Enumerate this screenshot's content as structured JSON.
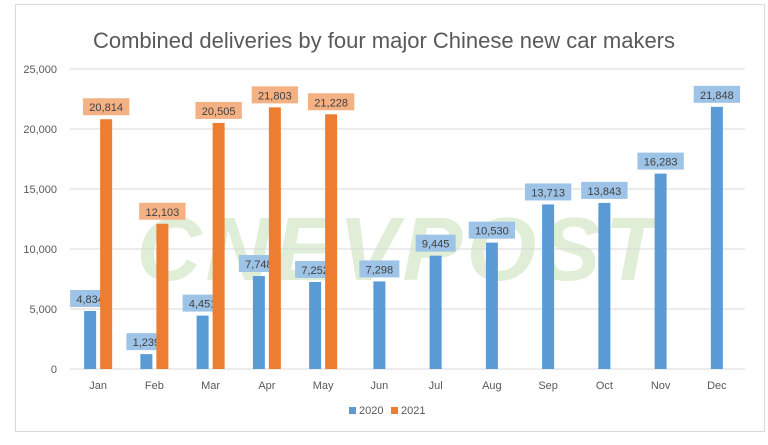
{
  "chart_data": {
    "type": "bar",
    "title": "Combined deliveries by four major Chinese new car makers",
    "categories": [
      "Jan",
      "Feb",
      "Mar",
      "Apr",
      "May",
      "Jun",
      "Jul",
      "Aug",
      "Sep",
      "Oct",
      "Nov",
      "Dec"
    ],
    "series": [
      {
        "name": "2020",
        "color": "#5b9bd5",
        "label_bg": "#9dc3e6",
        "values": [
          4834,
          1239,
          4451,
          7748,
          7252,
          7298,
          9445,
          10530,
          13713,
          13843,
          16283,
          21848
        ],
        "labels": [
          "4,834",
          "1,239",
          "4,451",
          "7,748",
          "7,252",
          "7,298",
          "9,445",
          "10,530",
          "13,713",
          "13,843",
          "16,283",
          "21,848"
        ]
      },
      {
        "name": "2021",
        "color": "#ed7d31",
        "label_bg": "#f4b183",
        "values": [
          20814,
          12103,
          20505,
          21803,
          21228,
          null,
          null,
          null,
          null,
          null,
          null,
          null
        ],
        "labels": [
          "20,814",
          "12,103",
          "20,505",
          "21,803",
          "21,228",
          null,
          null,
          null,
          null,
          null,
          null,
          null
        ]
      }
    ],
    "ylim": [
      0,
      25000
    ],
    "yticks": [
      0,
      5000,
      10000,
      15000,
      20000,
      25000
    ],
    "ytick_labels": [
      "0",
      "5,000",
      "10,000",
      "15,000",
      "20,000",
      "25,000"
    ],
    "grid": true,
    "legend": "bottom",
    "xlabel": "",
    "ylabel": ""
  },
  "watermark": "CNEVPOST"
}
